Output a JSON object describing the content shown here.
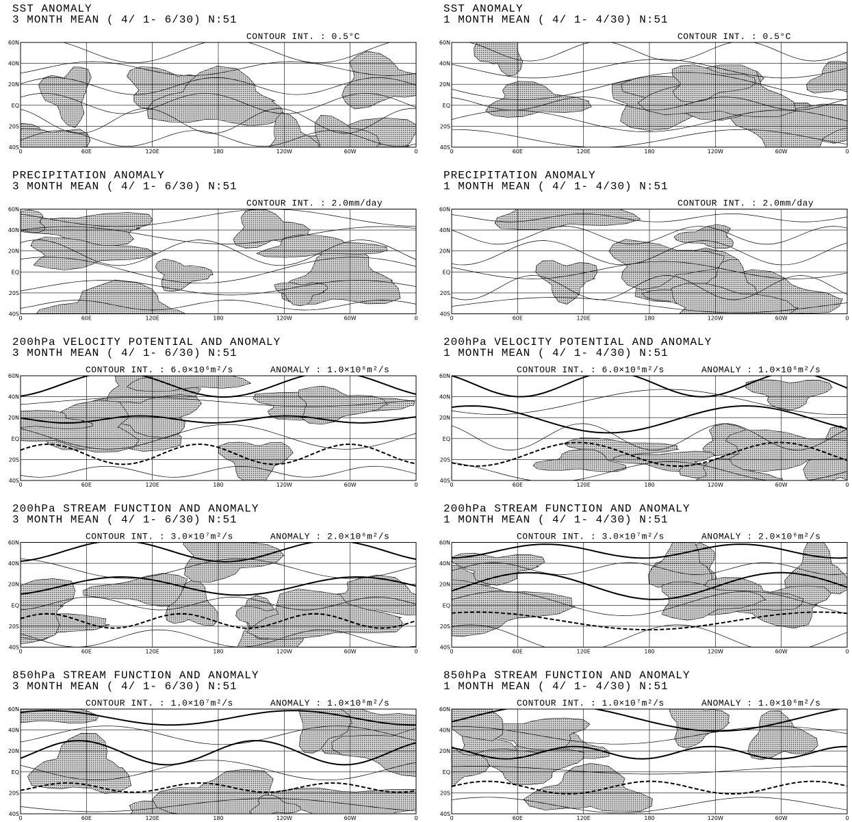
{
  "panels": [
    {
      "title": "SST ANOMALY",
      "subtitle": "3 MONTH MEAN ( 4/ 1- 6/30) N:51",
      "contour": "CONTOUR INT. : 0.5°C"
    },
    {
      "title": "SST ANOMALY",
      "subtitle": "1 MONTH MEAN ( 4/ 1- 4/30) N:51",
      "contour": "CONTOUR INT. : 0.5°C"
    },
    {
      "title": "PRECIPITATION ANOMALY",
      "subtitle": "3 MONTH MEAN ( 4/ 1- 6/30) N:51",
      "contour": "CONTOUR INT. : 2.0mm/day"
    },
    {
      "title": "PRECIPITATION ANOMALY",
      "subtitle": "1 MONTH MEAN ( 4/ 1- 4/30) N:51",
      "contour": "CONTOUR INT. : 2.0mm/day"
    },
    {
      "title": "200hPa VELOCITY POTENTIAL AND ANOMALY",
      "subtitle": "3 MONTH MEAN ( 4/ 1- 6/30) N:51",
      "contour": "CONTOUR INT. : 6.0×10⁶m²/s",
      "anomaly": "ANOMALY : 1.0×10⁶m²/s"
    },
    {
      "title": "200hPa VELOCITY POTENTIAL AND ANOMALY",
      "subtitle": "1 MONTH MEAN ( 4/ 1- 4/30) N:51",
      "contour": "CONTOUR INT. : 6.0×10⁶m²/s",
      "anomaly": "ANOMALY : 1.0×10⁶m²/s"
    },
    {
      "title": "200hPa STREAM FUNCTION AND ANOMALY",
      "subtitle": "3 MONTH MEAN ( 4/ 1- 6/30) N:51",
      "contour": "CONTOUR INT. : 3.0×10⁷m²/s",
      "anomaly": "ANOMALY : 2.0×10⁶m²/s"
    },
    {
      "title": "200hPa STREAM FUNCTION AND ANOMALY",
      "subtitle": "1 MONTH MEAN ( 4/ 1- 4/30) N:51",
      "contour": "CONTOUR INT. : 3.0×10⁷m²/s",
      "anomaly": "ANOMALY : 2.0×10⁶m²/s"
    },
    {
      "title": "850hPa STREAM FUNCTION AND ANOMALY",
      "subtitle": "3 MONTH MEAN ( 4/ 1- 6/30) N:51",
      "contour": "CONTOUR INT. : 1.0×10⁷m²/s",
      "anomaly": "ANOMALY : 1.0×10⁶m²/s"
    },
    {
      "title": "850hPa STREAM FUNCTION AND ANOMALY",
      "subtitle": "1 MONTH MEAN ( 4/ 1- 4/30) N:51",
      "contour": "CONTOUR INT. : 1.0×10⁷m²/s",
      "anomaly": "ANOMALY : 1.0×10⁶m²/s"
    }
  ],
  "axes": {
    "lat_labels": [
      "60N",
      "40N",
      "20N",
      "EQ",
      "20S",
      "40S"
    ],
    "lon_labels": [
      "0",
      "60E",
      "120E",
      "180",
      "120W",
      "60W",
      "0"
    ]
  }
}
